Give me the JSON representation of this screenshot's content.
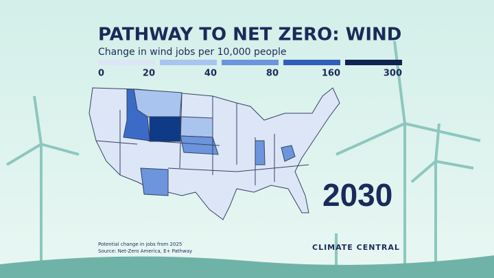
{
  "title": "PATHWAY TO NET ZERO: WIND",
  "subtitle": "Change in wind jobs per 10,000 people",
  "legend": {
    "breaks": [
      0,
      20,
      40,
      80,
      160,
      300
    ],
    "colors": [
      "#dde6f7",
      "#a9c4ef",
      "#6c95de",
      "#2f5fb8",
      "#0e2452"
    ]
  },
  "year": "2030",
  "footnotes": [
    "Potential change in jobs from 2025",
    "Source: Net-Zero America, E+ Pathway"
  ],
  "brand": "CLIMATE CENTRAL"
}
